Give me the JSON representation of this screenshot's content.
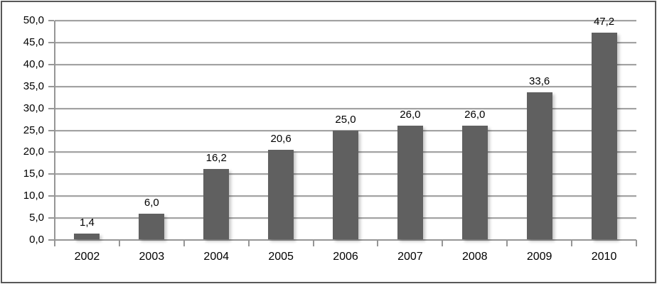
{
  "chart_data": {
    "type": "bar",
    "title": "",
    "xlabel": "",
    "ylabel": "",
    "categories": [
      "2002",
      "2003",
      "2004",
      "2005",
      "2006",
      "2007",
      "2008",
      "2009",
      "2010"
    ],
    "values": [
      1.4,
      6.0,
      16.2,
      20.6,
      25.0,
      26.0,
      26.0,
      33.6,
      47.2
    ],
    "value_labels": [
      "1,4",
      "6,0",
      "16,2",
      "20,6",
      "25,0",
      "26,0",
      "26,0",
      "33,6",
      "47,2"
    ],
    "ylim": [
      0,
      50
    ],
    "ytick_step": 5,
    "ytick_labels": [
      "0,0",
      "5,0",
      "10,0",
      "15,0",
      "20,0",
      "25,0",
      "30,0",
      "35,0",
      "40,0",
      "45,0",
      "50,0"
    ],
    "grid": true,
    "legend": "none",
    "colors": {
      "bar": "#606060",
      "gridline": "#a3a3a3",
      "axis": "#969696",
      "text": "#000000",
      "frame_border": "#575757",
      "background": "#ffffff"
    }
  }
}
